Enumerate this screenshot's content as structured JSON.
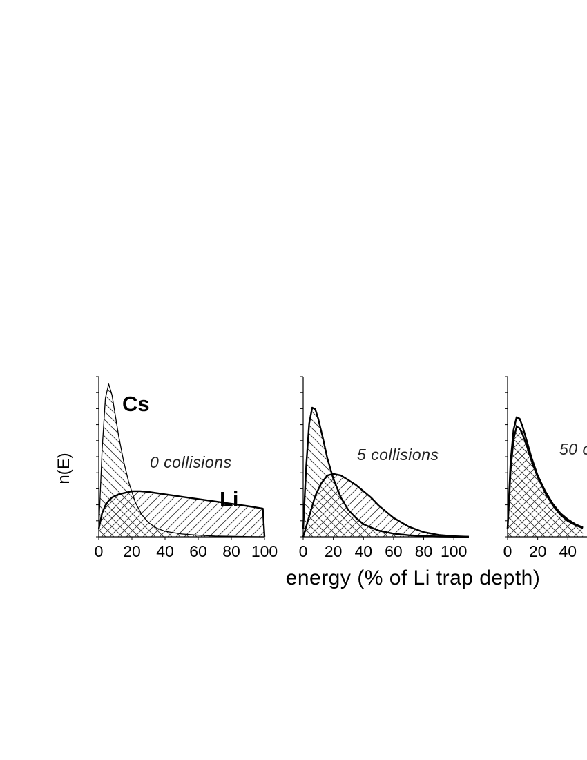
{
  "chart_data": {
    "type": "area",
    "xlabel": "energy (% of Li trap depth)",
    "ylabel": "n(E)",
    "panels": [
      {
        "annotation": "0 collisions",
        "x_ticks": [
          "0",
          "20",
          "40",
          "60",
          "80",
          "100"
        ],
        "xlim": [
          0,
          100
        ],
        "series": [
          {
            "name": "Cs",
            "x": [
              0,
              2,
              4,
              6,
              8,
              10,
              12,
              15,
              18,
              22,
              26,
              30,
              35,
              40,
              50,
              60,
              70,
              80,
              90,
              100
            ],
            "y": [
              0.05,
              0.55,
              0.88,
              0.97,
              0.9,
              0.77,
              0.64,
              0.48,
              0.35,
              0.22,
              0.14,
              0.09,
              0.055,
              0.035,
              0.018,
              0.01,
              0.005,
              0.003,
              0.001,
              0
            ]
          },
          {
            "name": "Li",
            "x": [
              0,
              2,
              4,
              6,
              8,
              12,
              16,
              20,
              25,
              30,
              40,
              50,
              60,
              70,
              80,
              90,
              99,
              100
            ],
            "y": [
              0.05,
              0.15,
              0.2,
              0.23,
              0.25,
              0.27,
              0.28,
              0.29,
              0.29,
              0.285,
              0.27,
              0.255,
              0.24,
              0.225,
              0.21,
              0.195,
              0.18,
              0
            ]
          }
        ]
      },
      {
        "annotation": "5 collisions",
        "x_ticks": [
          "0",
          "20",
          "40",
          "60",
          "80",
          "100"
        ],
        "xlim": [
          0,
          110
        ],
        "series": [
          {
            "name": "Cs",
            "x": [
              0,
              2,
              4,
              6,
              8,
              10,
              13,
              16,
              20,
              25,
              30,
              35,
              40,
              50,
              60,
              70,
              80,
              90,
              100,
              110
            ],
            "y": [
              0.05,
              0.45,
              0.72,
              0.82,
              0.81,
              0.75,
              0.63,
              0.5,
              0.37,
              0.25,
              0.17,
              0.12,
              0.08,
              0.04,
              0.02,
              0.01,
              0.005,
              0.002,
              0.001,
              0
            ]
          },
          {
            "name": "Li",
            "x": [
              0,
              4,
              8,
              12,
              16,
              20,
              25,
              30,
              35,
              40,
              45,
              50,
              55,
              60,
              70,
              80,
              90,
              100,
              110
            ],
            "y": [
              0,
              0.13,
              0.26,
              0.34,
              0.39,
              0.4,
              0.39,
              0.36,
              0.33,
              0.29,
              0.25,
              0.2,
              0.16,
              0.12,
              0.065,
              0.03,
              0.012,
              0.004,
              0
            ]
          }
        ]
      },
      {
        "annotation": "50 c",
        "x_ticks": [
          "0",
          "20",
          "40"
        ],
        "xlim": [
          0,
          110
        ],
        "series": [
          {
            "name": "Cs",
            "x": [
              0,
              2,
              4,
              6,
              8,
              10,
              13,
              16,
              20,
              25,
              30,
              35,
              40,
              45,
              50
            ],
            "y": [
              0.05,
              0.48,
              0.68,
              0.76,
              0.75,
              0.7,
              0.6,
              0.5,
              0.39,
              0.29,
              0.21,
              0.15,
              0.11,
              0.08,
              0.06
            ]
          },
          {
            "name": "Li",
            "x": [
              0,
              2,
              4,
              6,
              8,
              10,
              13,
              16,
              20,
              25,
              30,
              35,
              40,
              45,
              50
            ],
            "y": [
              0.05,
              0.42,
              0.62,
              0.7,
              0.69,
              0.65,
              0.57,
              0.48,
              0.38,
              0.28,
              0.2,
              0.14,
              0.1,
              0.075,
              0.055
            ]
          }
        ]
      }
    ],
    "series_labels": [
      "Cs",
      "Li"
    ],
    "grid": false
  }
}
